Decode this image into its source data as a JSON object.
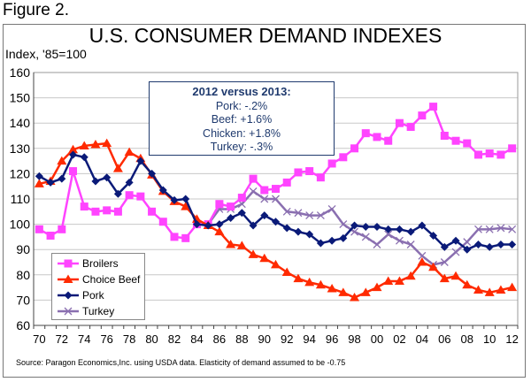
{
  "figure_label": "Figure 2.",
  "source": "Source: Paragon Economics,Inc. using USDA data.  Elasticity of demand assumed to be -0.75",
  "annotation": {
    "heading": "2012 versus 2013:",
    "lines": [
      "Pork: -.2%",
      "Beef: +1.6%",
      "Chicken: +1.8%",
      "Turkey:  -.3%"
    ]
  },
  "chart_data": {
    "type": "line",
    "title": "U.S. CONSUMER DEMAND INDEXES",
    "ylabel": "Index, '85=100",
    "xlabel": "",
    "ylim": [
      60,
      160
    ],
    "yticks": [
      60,
      70,
      80,
      90,
      100,
      110,
      120,
      130,
      140,
      150,
      160
    ],
    "x": [
      1970,
      1971,
      1972,
      1973,
      1974,
      1975,
      1976,
      1977,
      1978,
      1979,
      1980,
      1981,
      1982,
      1983,
      1984,
      1985,
      1986,
      1987,
      1988,
      1989,
      1990,
      1991,
      1992,
      1993,
      1994,
      1995,
      1996,
      1997,
      1998,
      1999,
      2000,
      2001,
      2002,
      2003,
      2004,
      2005,
      2006,
      2007,
      2008,
      2009,
      2010,
      2011,
      2012
    ],
    "xtick_labels": [
      "70",
      "72",
      "74",
      "76",
      "78",
      "80",
      "82",
      "84",
      "86",
      "88",
      "90",
      "92",
      "94",
      "96",
      "98",
      "00",
      "02",
      "04",
      "06",
      "08",
      "10",
      "12"
    ],
    "grid": true,
    "legend": "bottom-left",
    "series": [
      {
        "name": "Broilers",
        "color": "#ff44ff",
        "marker": "square",
        "values": [
          98,
          95.5,
          98,
          121,
          107,
          105,
          105.5,
          105,
          111.5,
          111,
          105,
          101,
          95,
          94.5,
          100,
          100,
          108,
          107,
          110.5,
          118,
          113.5,
          114,
          116.5,
          120.5,
          121,
          118.5,
          124,
          126.5,
          130,
          136,
          134.5,
          133,
          140,
          138.5,
          143,
          146.5,
          135,
          133,
          132,
          127.5,
          128,
          127.5,
          130
        ]
      },
      {
        "name": "Choice Beef",
        "color": "#ff2a00",
        "marker": "triangle",
        "values": [
          116,
          117,
          125,
          129.5,
          131,
          131.5,
          132,
          122,
          128.5,
          126,
          119.5,
          113,
          109,
          107,
          102,
          99.5,
          97,
          92,
          91.5,
          88,
          86.5,
          84,
          81,
          78.5,
          77,
          76,
          74.5,
          73,
          71,
          73,
          75,
          77.5,
          77.5,
          79.5,
          85,
          83,
          78.5,
          79.5,
          76,
          74,
          73,
          74,
          75
        ]
      },
      {
        "name": "Pork",
        "color": "#0a1a78",
        "marker": "diamond",
        "values": [
          119,
          116.5,
          118,
          127.5,
          126.5,
          117,
          118.5,
          112,
          116.5,
          125,
          120,
          113.5,
          109.5,
          110,
          100,
          99.5,
          100,
          102.5,
          104.5,
          99.5,
          103.5,
          101,
          98.5,
          97,
          96,
          92.5,
          93.5,
          94.5,
          99.5,
          99,
          99,
          98,
          98,
          97,
          99.5,
          95.5,
          91,
          93.5,
          90,
          92,
          91,
          92,
          92
        ]
      },
      {
        "name": "Turkey",
        "color": "#8a6fb0",
        "marker": "x",
        "values": [
          null,
          null,
          null,
          null,
          null,
          null,
          null,
          null,
          null,
          null,
          null,
          null,
          null,
          null,
          null,
          100,
          106,
          106,
          108,
          113,
          110,
          110,
          105,
          104.5,
          103.5,
          103.5,
          106,
          100,
          97,
          95,
          92,
          96,
          93.5,
          92,
          87.5,
          84,
          85,
          89,
          93,
          98,
          98,
          98.5,
          98
        ]
      }
    ]
  }
}
